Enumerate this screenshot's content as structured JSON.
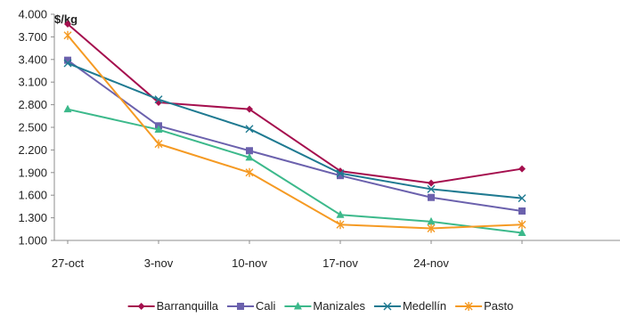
{
  "chart_data": {
    "type": "line",
    "ylabel": "$/kg",
    "categories": [
      "27-oct",
      "3-nov",
      "10-nov",
      "17-nov",
      "24-nov",
      ""
    ],
    "ylim": [
      1000,
      4000
    ],
    "yticks": [
      1000,
      1300,
      1600,
      1900,
      2200,
      2500,
      2800,
      3100,
      3400,
      3700,
      4000
    ],
    "ytick_labels": [
      "1.000",
      "1.300",
      "1.600",
      "1.900",
      "2.200",
      "2.500",
      "2.800",
      "3.100",
      "3.400",
      "3.700",
      "4.000"
    ],
    "grid": false,
    "legend_position": "bottom",
    "series": [
      {
        "name": "Barranquilla",
        "color": "#a50f4e",
        "marker": "diamond",
        "values": [
          3870,
          2830,
          2740,
          1920,
          1760,
          1950
        ]
      },
      {
        "name": "Cali",
        "color": "#6b61ad",
        "marker": "square",
        "values": [
          3390,
          2520,
          2190,
          1860,
          1570,
          1390
        ]
      },
      {
        "name": "Manizales",
        "color": "#3cb98b",
        "marker": "triangle",
        "values": [
          2740,
          2470,
          2100,
          1340,
          1250,
          1100
        ]
      },
      {
        "name": "Medellín",
        "color": "#1f7a91",
        "marker": "x",
        "values": [
          3350,
          2870,
          2480,
          1890,
          1680,
          1560
        ]
      },
      {
        "name": "Pasto",
        "color": "#f59a23",
        "marker": "star",
        "values": [
          3720,
          2280,
          1900,
          1210,
          1160,
          1210
        ]
      }
    ]
  }
}
